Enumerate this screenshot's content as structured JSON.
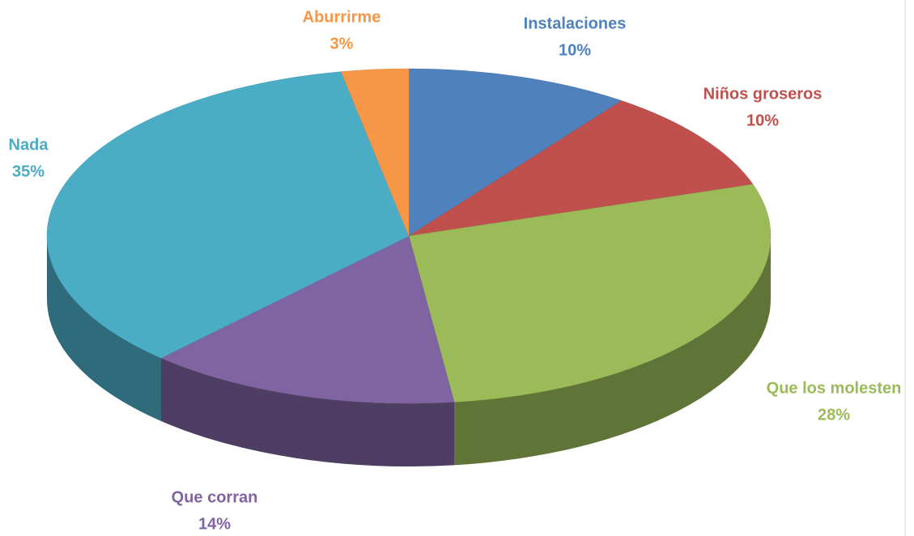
{
  "chart_data": {
    "type": "pie3d",
    "categories": [
      "Instalaciones",
      "Niños groseros",
      "Que los molesten",
      "Que corran",
      "Nada",
      "Aburrirme"
    ],
    "values": [
      10,
      10,
      28,
      14,
      35,
      3
    ],
    "value_labels": [
      "10%",
      "10%",
      "28%",
      "14%",
      "35%",
      "3%"
    ],
    "colors": [
      "#4f81bd",
      "#c0504d",
      "#9bbb59",
      "#8064a2",
      "#4bacc6",
      "#f79646"
    ]
  }
}
